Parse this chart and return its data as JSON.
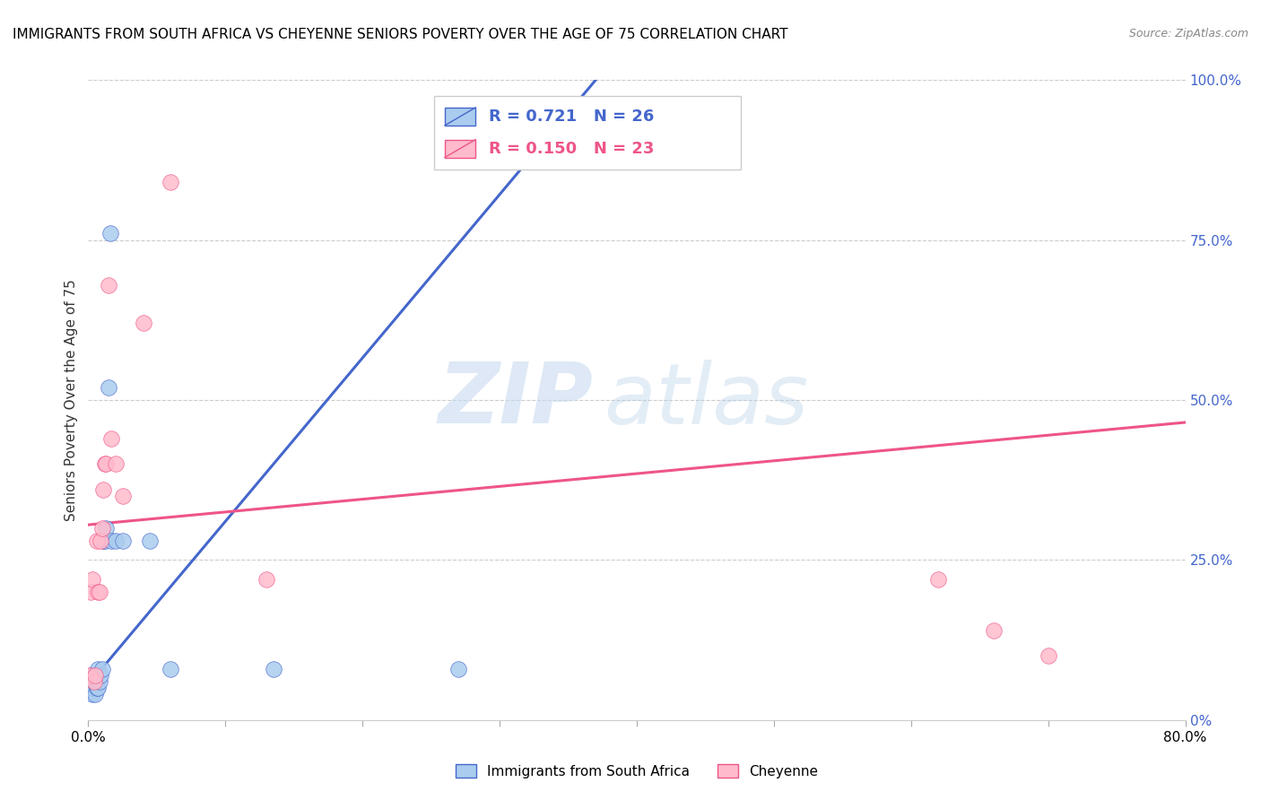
{
  "title": "IMMIGRANTS FROM SOUTH AFRICA VS CHEYENNE SENIORS POVERTY OVER THE AGE OF 75 CORRELATION CHART",
  "source": "Source: ZipAtlas.com",
  "ylabel": "Seniors Poverty Over the Age of 75",
  "xlim": [
    0.0,
    0.8
  ],
  "ylim": [
    0.0,
    1.0
  ],
  "legend_label1": "Immigrants from South Africa",
  "legend_label2": "Cheyenne",
  "r1": 0.721,
  "n1": 26,
  "r2": 0.15,
  "n2": 23,
  "color1": "#AACCEE",
  "color2": "#FFBBCC",
  "line_color1": "#4466CC",
  "line_color2": "#EE5588",
  "blue_dots_x": [
    0.001,
    0.002,
    0.002,
    0.003,
    0.003,
    0.004,
    0.005,
    0.005,
    0.006,
    0.007,
    0.007,
    0.008,
    0.009,
    0.01,
    0.011,
    0.012,
    0.013,
    0.015,
    0.016,
    0.017,
    0.02,
    0.025,
    0.045,
    0.06,
    0.135,
    0.27
  ],
  "blue_dots_y": [
    0.05,
    0.06,
    0.07,
    0.04,
    0.05,
    0.06,
    0.04,
    0.07,
    0.05,
    0.05,
    0.08,
    0.06,
    0.07,
    0.08,
    0.28,
    0.28,
    0.3,
    0.52,
    0.76,
    0.28,
    0.28,
    0.28,
    0.28,
    0.08,
    0.08,
    0.08
  ],
  "pink_dots_x": [
    0.001,
    0.002,
    0.003,
    0.004,
    0.005,
    0.006,
    0.007,
    0.008,
    0.009,
    0.01,
    0.011,
    0.012,
    0.013,
    0.015,
    0.017,
    0.02,
    0.025,
    0.04,
    0.06,
    0.13,
    0.62,
    0.66,
    0.7
  ],
  "pink_dots_y": [
    0.07,
    0.2,
    0.22,
    0.06,
    0.07,
    0.28,
    0.2,
    0.2,
    0.28,
    0.3,
    0.36,
    0.4,
    0.4,
    0.68,
    0.44,
    0.4,
    0.35,
    0.62,
    0.84,
    0.22,
    0.22,
    0.14,
    0.1
  ],
  "blue_trendline_x": [
    0.0,
    0.37
  ],
  "blue_trendline_y": [
    0.055,
    1.0
  ],
  "pink_trendline_x": [
    0.0,
    0.8
  ],
  "pink_trendline_y": [
    0.305,
    0.465
  ]
}
